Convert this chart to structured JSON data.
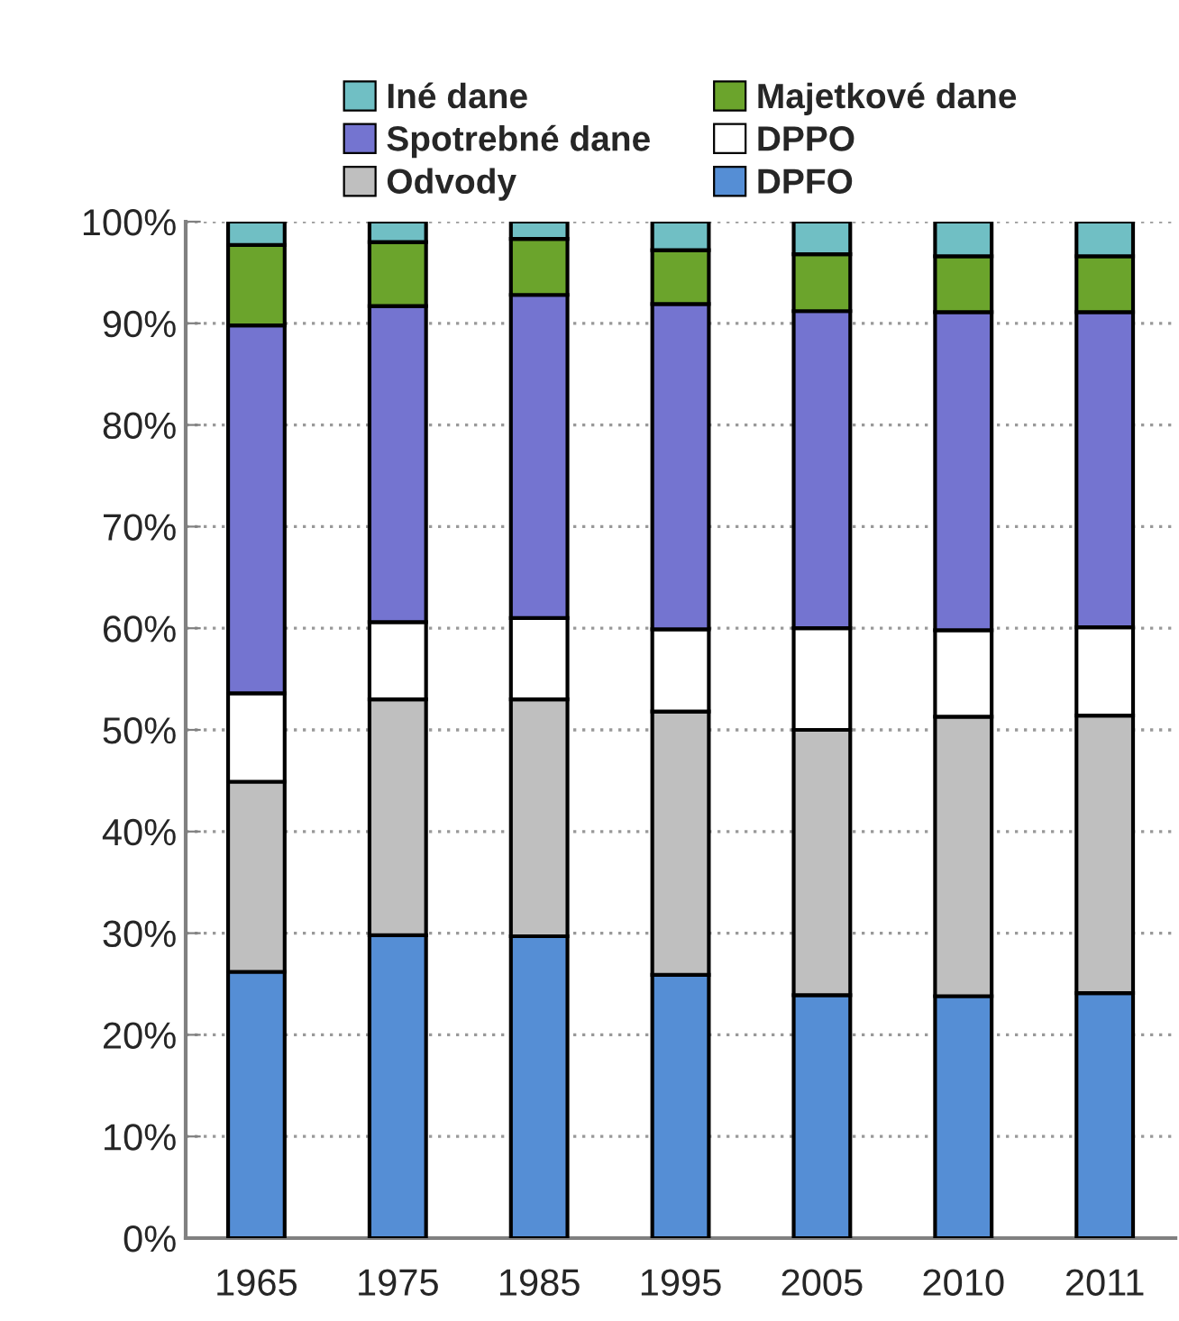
{
  "chart_data": {
    "type": "bar",
    "stacked": true,
    "categories": [
      "1965",
      "1975",
      "1985",
      "1995",
      "2005",
      "2010",
      "2011"
    ],
    "series": [
      {
        "name": "DPFO",
        "color": "#558ed5",
        "values": [
          26.2,
          29.8,
          29.7,
          25.9,
          23.9,
          23.8,
          24.1
        ]
      },
      {
        "name": "Odvody",
        "color": "#bfbfbf",
        "values": [
          18.7,
          23.2,
          23.3,
          25.9,
          26.1,
          27.5,
          27.3
        ]
      },
      {
        "name": "DPPO",
        "color": "#ffffff",
        "values": [
          8.7,
          7.6,
          8.0,
          8.1,
          10.0,
          8.5,
          8.7
        ]
      },
      {
        "name": "Spotrebné dane",
        "color": "#7474d0",
        "values": [
          36.2,
          31.1,
          31.8,
          32.0,
          31.2,
          31.3,
          31.0
        ]
      },
      {
        "name": "Majetkové dane",
        "color": "#6ba42c",
        "values": [
          7.9,
          6.3,
          5.5,
          5.3,
          5.6,
          5.5,
          5.5
        ]
      },
      {
        "name": "Iné dane",
        "color": "#70bfc4",
        "values": [
          2.3,
          2.0,
          1.7,
          2.8,
          3.2,
          3.4,
          3.4
        ]
      }
    ],
    "ylim": [
      0,
      100
    ],
    "yticks": [
      {
        "value": 0,
        "label": "0%"
      },
      {
        "value": 10,
        "label": "10%"
      },
      {
        "value": 20,
        "label": "20%"
      },
      {
        "value": 30,
        "label": "30%"
      },
      {
        "value": 40,
        "label": "40%"
      },
      {
        "value": 50,
        "label": "50%"
      },
      {
        "value": 60,
        "label": "60%"
      },
      {
        "value": 70,
        "label": "70%"
      },
      {
        "value": 80,
        "label": "80%"
      },
      {
        "value": 90,
        "label": "90%"
      },
      {
        "value": 100,
        "label": "100%"
      }
    ],
    "grid": "y",
    "legend": "top"
  }
}
